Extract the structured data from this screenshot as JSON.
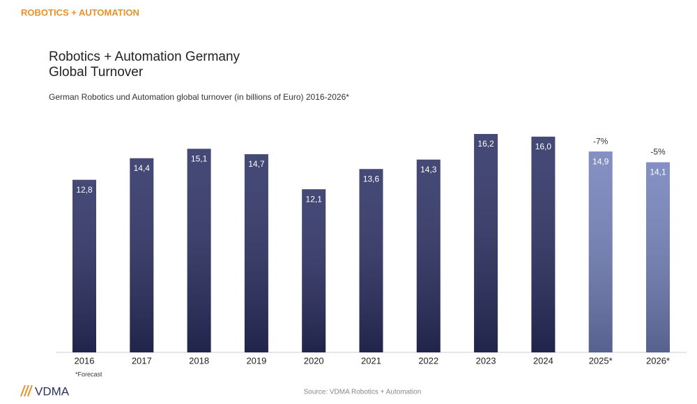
{
  "header": "ROBOTICS + AUTOMATION",
  "chart_data": {
    "type": "bar",
    "title": [
      "Robotics + Automation Germany",
      "Global Turnover"
    ],
    "subtitle": "German Robotics und Automation global turnover (in billions of Euro) 2016-2026*",
    "categories": [
      "2016",
      "2017",
      "2018",
      "2019",
      "2020",
      "2021",
      "2022",
      "2023",
      "2024",
      "2025*",
      "2026*"
    ],
    "values": [
      12.8,
      14.4,
      15.1,
      14.7,
      12.1,
      13.6,
      14.3,
      16.2,
      16.0,
      14.9,
      14.1
    ],
    "value_labels": [
      "12,8",
      "14,4",
      "15,1",
      "14,7",
      "12,1",
      "13,6",
      "14,3",
      "16,2",
      "16,0",
      "14,9",
      "14,1"
    ],
    "annotations": [
      null,
      null,
      null,
      null,
      null,
      null,
      null,
      null,
      null,
      "-7%",
      "-5%"
    ],
    "colors": [
      "#2b3063",
      "#2b3063",
      "#2b3063",
      "#2b3063",
      "#2b3063",
      "#2b3063",
      "#2b3063",
      "#2b3063",
      "#2b3063",
      "#7381bb",
      "#7381bb"
    ]
  },
  "footnote": "*Forecast",
  "source": "Source: VDMA Robotics + Automation",
  "logo": "VDMA"
}
